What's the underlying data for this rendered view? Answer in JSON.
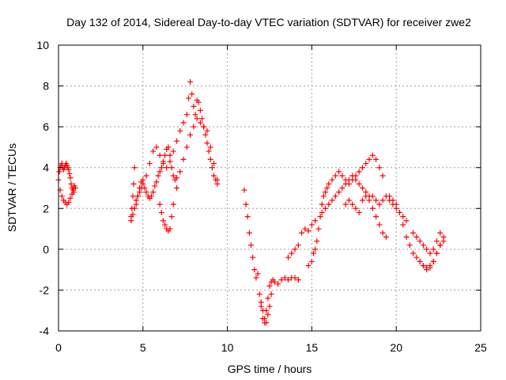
{
  "chart_data": {
    "type": "scatter",
    "title": "Day 132 of 2014, Sidereal Day-to-day VTEC variation (SDTVAR) for receiver zwe2",
    "xlabel": "GPS time / hours",
    "ylabel": "SDTVAR / TECUs",
    "xlim": [
      0,
      25
    ],
    "ylim": [
      -4,
      10
    ],
    "xticks": [
      "0",
      "5",
      "10",
      "15",
      "20",
      "25"
    ],
    "xtick_values": [
      0,
      5,
      10,
      15,
      20,
      25
    ],
    "yticks": [
      "-4",
      "-2",
      "0",
      "2",
      "4",
      "6",
      "8",
      "10"
    ],
    "ytick_values": [
      -4,
      -2,
      0,
      2,
      4,
      6,
      8,
      10
    ],
    "grid": true,
    "marker": "plus",
    "series": [
      {
        "name": "SDTVAR",
        "color": "#ff0000",
        "x": [
          0.0,
          0.05,
          0.1,
          0.15,
          0.2,
          0.25,
          0.3,
          0.35,
          0.4,
          0.45,
          0.5,
          0.55,
          0.6,
          0.65,
          0.7,
          0.75,
          0.8,
          0.85,
          0.9,
          0.95,
          1.0,
          0.1,
          0.2,
          0.3,
          0.4,
          0.5,
          0.6,
          0.7,
          0.8,
          0.9,
          4.3,
          4.35,
          4.4,
          4.45,
          4.5,
          4.6,
          4.7,
          4.8,
          4.9,
          5.0,
          5.1,
          5.2,
          5.3,
          5.4,
          5.5,
          5.6,
          5.7,
          5.8,
          5.9,
          6.0,
          6.1,
          6.2,
          6.3,
          6.4,
          6.5,
          6.6,
          6.7,
          6.8,
          6.9,
          7.0,
          4.3,
          4.4,
          4.5,
          4.6,
          4.7,
          4.8,
          4.9,
          5.0,
          5.2,
          5.4,
          5.6,
          5.8,
          6.0,
          6.2,
          6.4,
          6.6,
          6.8,
          7.0,
          7.2,
          7.4,
          7.6,
          7.7,
          7.8,
          7.9,
          8.0,
          8.1,
          8.2,
          8.3,
          8.4,
          8.5,
          8.6,
          8.7,
          8.8,
          8.9,
          9.0,
          9.1,
          9.2,
          9.3,
          9.4,
          6.0,
          6.1,
          6.2,
          6.3,
          6.4,
          6.5,
          6.6,
          6.7,
          6.8,
          7.0,
          7.2,
          7.4,
          7.6,
          7.8,
          8.0,
          8.2,
          8.4,
          8.6,
          8.8,
          9.0,
          9.2,
          9.4,
          11.0,
          11.1,
          11.2,
          11.3,
          11.4,
          11.5,
          11.6,
          11.7,
          11.8,
          11.9,
          12.0,
          12.1,
          12.2,
          12.3,
          12.4,
          12.5,
          12.6,
          12.7,
          12.8,
          13.0,
          13.2,
          13.4,
          13.6,
          13.8,
          14.0,
          14.2,
          12.0,
          12.1,
          12.2,
          12.3,
          12.4,
          12.5,
          12.6,
          13.6,
          13.8,
          14.0,
          14.2,
          14.4,
          14.6,
          14.8,
          15.0,
          15.2,
          14.8,
          15.0,
          15.1,
          15.2,
          15.3,
          15.4,
          15.5,
          15.6,
          15.7,
          15.8,
          15.9,
          16.0,
          16.2,
          16.4,
          16.6,
          16.8,
          17.0,
          17.2,
          17.4,
          17.6,
          17.8,
          18.0,
          18.2,
          18.4,
          18.6,
          18.8,
          19.0,
          19.2,
          15.6,
          15.8,
          16.0,
          16.2,
          16.4,
          16.6,
          16.8,
          17.0,
          17.2,
          17.4,
          17.6,
          17.8,
          18.0,
          18.2,
          18.4,
          18.6,
          18.8,
          19.0,
          19.2,
          19.4,
          19.6,
          19.8,
          20.0,
          20.2,
          20.4,
          20.6,
          17.0,
          17.2,
          17.4,
          17.6,
          17.8,
          18.0,
          18.2,
          18.4,
          18.6,
          18.8,
          19.0,
          19.2,
          19.4,
          19.6,
          19.8,
          20.0,
          20.2,
          20.4,
          20.6,
          20.8,
          21.0,
          21.2,
          21.4,
          21.6,
          21.8,
          22.0,
          22.2,
          22.4,
          22.6,
          22.8,
          21.0,
          21.2,
          21.4,
          21.6,
          21.8,
          22.0,
          22.2,
          22.4,
          22.6,
          22.8,
          21.4,
          21.6,
          21.8,
          22.0,
          22.2,
          22.4,
          22.6
        ],
        "y": [
          3.4,
          3.8,
          4.0,
          4.1,
          4.2,
          4.0,
          3.9,
          4.0,
          4.1,
          4.2,
          4.1,
          4.0,
          3.9,
          3.7,
          3.5,
          3.2,
          3.0,
          2.9,
          3.0,
          3.1,
          3.0,
          2.9,
          2.6,
          2.4,
          2.3,
          2.2,
          2.3,
          2.5,
          2.7,
          2.8,
          1.6,
          2.0,
          2.6,
          3.2,
          4.0,
          2.2,
          2.6,
          3.0,
          3.3,
          3.4,
          3.0,
          2.8,
          2.6,
          2.5,
          2.6,
          2.8,
          3.1,
          3.3,
          3.6,
          3.8,
          4.0,
          4.3,
          4.6,
          4.9,
          5.0,
          4.6,
          4.0,
          3.6,
          3.4,
          3.5,
          1.4,
          1.7,
          2.0,
          2.4,
          2.6,
          2.8,
          3.0,
          3.2,
          3.6,
          4.2,
          4.8,
          5.0,
          4.6,
          4.2,
          4.0,
          4.3,
          4.8,
          5.3,
          5.8,
          6.2,
          6.6,
          7.4,
          8.2,
          7.6,
          7.0,
          6.6,
          7.3,
          7.2,
          6.8,
          6.4,
          6.0,
          5.6,
          5.2,
          4.8,
          4.4,
          4.0,
          3.6,
          3.4,
          3.2,
          2.2,
          1.8,
          1.4,
          1.2,
          1.0,
          0.9,
          1.0,
          1.6,
          2.2,
          3.0,
          3.8,
          4.4,
          5.0,
          5.6,
          6.0,
          6.4,
          6.2,
          6.0,
          5.8,
          5.0,
          4.2,
          3.4,
          2.9,
          2.2,
          1.6,
          0.8,
          0.2,
          -0.4,
          -1.0,
          -1.4,
          -1.2,
          -2.2,
          -2.8,
          -3.4,
          -3.6,
          -3.0,
          -2.4,
          -1.8,
          -1.6,
          -1.5,
          -1.6,
          -1.7,
          -1.5,
          -1.4,
          -1.5,
          -1.4,
          -1.4,
          -1.5,
          -2.6,
          -3.0,
          -3.4,
          -3.6,
          -3.2,
          -2.8,
          -2.2,
          -0.4,
          -0.2,
          0.0,
          0.2,
          0.8,
          1.0,
          0.9,
          1.2,
          1.4,
          -0.8,
          -0.6,
          -0.2,
          0.0,
          0.4,
          1.0,
          1.6,
          2.2,
          2.6,
          2.8,
          3.0,
          3.2,
          3.4,
          3.6,
          3.8,
          3.6,
          3.4,
          3.2,
          3.4,
          3.6,
          3.8,
          4.0,
          4.2,
          4.4,
          4.6,
          4.4,
          4.0,
          3.6,
          1.8,
          2.0,
          2.2,
          2.4,
          2.6,
          2.8,
          3.0,
          3.2,
          3.4,
          3.6,
          3.4,
          3.2,
          3.0,
          2.8,
          2.6,
          2.6,
          2.4,
          2.2,
          2.4,
          2.6,
          2.4,
          2.2,
          2.0,
          1.8,
          1.6,
          1.4,
          2.2,
          2.4,
          2.2,
          2.0,
          1.8,
          2.4,
          2.6,
          2.4,
          2.0,
          1.6,
          1.2,
          0.8,
          0.6,
          2.6,
          2.4,
          2.2,
          1.8,
          1.2,
          0.6,
          0.2,
          -0.2,
          -0.4,
          -0.6,
          -0.8,
          -0.9,
          -0.8,
          -0.6,
          -0.2,
          0.2,
          0.4,
          0.8,
          0.6,
          0.4,
          0.2,
          0.0,
          -0.2,
          0.0,
          0.4,
          0.8,
          0.6,
          -0.6,
          -0.8,
          -1.0,
          -0.9,
          -0.6,
          -0.2,
          0.2
        ]
      }
    ]
  }
}
